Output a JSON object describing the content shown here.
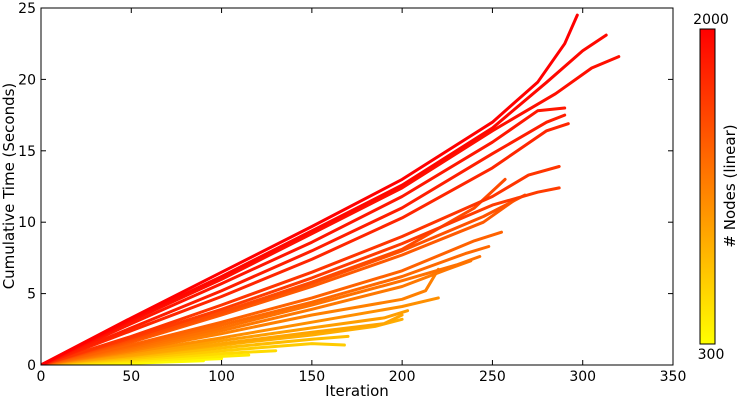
{
  "chart_data": {
    "type": "line",
    "title": "",
    "xlabel": "Iteration",
    "ylabel": "Cumulative Time (Seconds)",
    "xlim": [
      0,
      350
    ],
    "ylim": [
      0,
      25
    ],
    "xticks": [
      0,
      50,
      100,
      150,
      200,
      250,
      300,
      350
    ],
    "yticks": [
      0,
      5,
      10,
      15,
      20,
      25
    ],
    "grid": false,
    "colorbar": {
      "label": "# Nodes (linear)",
      "min": 300,
      "max": 2000,
      "min_label": "300",
      "max_label": "2000",
      "scale": "linear",
      "colors": [
        "#ffff00",
        "#ffaa00",
        "#ff5500",
        "#ff0000"
      ]
    },
    "series": [
      {
        "nodes": 2000,
        "x": [
          0,
          50,
          100,
          150,
          200,
          250,
          275,
          290,
          297
        ],
        "y": [
          0,
          3.3,
          6.5,
          9.7,
          13.0,
          17.0,
          19.8,
          22.5,
          24.5
        ]
      },
      {
        "nodes": 1950,
        "x": [
          0,
          50,
          100,
          150,
          200,
          250,
          280,
          300,
          313
        ],
        "y": [
          0,
          3.2,
          6.2,
          9.4,
          12.6,
          16.6,
          19.8,
          22.0,
          23.1
        ]
      },
      {
        "nodes": 1900,
        "x": [
          0,
          50,
          100,
          150,
          200,
          250,
          285,
          305,
          320
        ],
        "y": [
          0,
          3.1,
          6.0,
          9.2,
          12.4,
          16.4,
          19.0,
          20.8,
          21.6
        ]
      },
      {
        "nodes": 1850,
        "x": [
          0,
          50,
          100,
          150,
          200,
          250,
          275,
          290
        ],
        "y": [
          0,
          2.9,
          5.7,
          8.6,
          11.8,
          15.6,
          17.8,
          18.0
        ]
      },
      {
        "nodes": 1800,
        "x": [
          0,
          50,
          100,
          150,
          200,
          250,
          280,
          290
        ],
        "y": [
          0,
          2.6,
          5.2,
          8.0,
          11.0,
          14.8,
          17.0,
          17.5
        ]
      },
      {
        "nodes": 1750,
        "x": [
          0,
          50,
          100,
          150,
          200,
          250,
          280,
          292
        ],
        "y": [
          0,
          2.4,
          4.8,
          7.4,
          10.3,
          13.8,
          16.4,
          16.9
        ]
      },
      {
        "nodes": 1650,
        "x": [
          0,
          50,
          100,
          150,
          200,
          250,
          270,
          287
        ],
        "y": [
          0,
          2.0,
          4.2,
          6.5,
          9.0,
          11.8,
          13.3,
          13.9
        ]
      },
      {
        "nodes": 1600,
        "x": [
          0,
          50,
          100,
          150,
          200,
          250,
          275,
          287
        ],
        "y": [
          0,
          1.9,
          3.9,
          6.1,
          8.5,
          11.2,
          12.1,
          12.4
        ]
      },
      {
        "nodes": 1500,
        "x": [
          0,
          50,
          100,
          150,
          200,
          240,
          257
        ],
        "y": [
          0,
          1.8,
          3.7,
          5.8,
          8.1,
          11.0,
          13.0
        ]
      },
      {
        "nodes": 1450,
        "x": [
          0,
          50,
          100,
          150,
          200,
          245,
          268
        ],
        "y": [
          0,
          1.7,
          3.6,
          5.7,
          8.0,
          10.4,
          11.9
        ]
      },
      {
        "nodes": 1400,
        "x": [
          0,
          50,
          100,
          150,
          200,
          245,
          264
        ],
        "y": [
          0,
          1.6,
          3.5,
          5.5,
          7.7,
          10.0,
          11.7
        ]
      },
      {
        "nodes": 1350,
        "x": [
          0,
          50,
          100,
          150,
          200,
          240,
          255
        ],
        "y": [
          0,
          1.4,
          3.0,
          4.7,
          6.6,
          8.7,
          9.3
        ]
      },
      {
        "nodes": 1300,
        "x": [
          0,
          50,
          100,
          150,
          200,
          235,
          248
        ],
        "y": [
          0,
          1.3,
          2.8,
          4.4,
          6.2,
          7.8,
          8.3
        ]
      },
      {
        "nodes": 1250,
        "x": [
          0,
          50,
          100,
          150,
          200,
          230,
          243
        ],
        "y": [
          0,
          1.2,
          2.6,
          4.2,
          5.9,
          7.0,
          7.6
        ]
      },
      {
        "nodes": 1200,
        "x": [
          0,
          50,
          100,
          150,
          200,
          225,
          238
        ],
        "y": [
          0,
          1.1,
          2.4,
          3.9,
          5.5,
          6.7,
          7.3
        ]
      },
      {
        "nodes": 1150,
        "x": [
          0,
          50,
          100,
          150,
          200,
          213,
          220
        ],
        "y": [
          0,
          1.0,
          2.2,
          3.5,
          4.6,
          5.2,
          6.7
        ]
      },
      {
        "nodes": 1050,
        "x": [
          0,
          50,
          100,
          150,
          200,
          220
        ],
        "y": [
          0,
          0.9,
          1.9,
          3.0,
          4.1,
          4.7
        ]
      },
      {
        "nodes": 950,
        "x": [
          0,
          50,
          100,
          150,
          190,
          203
        ],
        "y": [
          0,
          0.8,
          1.7,
          2.6,
          3.3,
          3.8
        ]
      },
      {
        "nodes": 900,
        "x": [
          0,
          50,
          100,
          150,
          190,
          200
        ],
        "y": [
          0,
          0.7,
          1.5,
          2.3,
          2.9,
          3.5
        ]
      },
      {
        "nodes": 850,
        "x": [
          0,
          50,
          100,
          150,
          185,
          200
        ],
        "y": [
          0,
          0.65,
          1.4,
          2.1,
          2.7,
          3.2
        ]
      },
      {
        "nodes": 750,
        "x": [
          0,
          50,
          100,
          150,
          170
        ],
        "y": [
          0,
          0.55,
          1.2,
          1.8,
          2.0
        ]
      },
      {
        "nodes": 650,
        "x": [
          0,
          50,
          100,
          150,
          168
        ],
        "y": [
          0,
          0.45,
          1.0,
          1.5,
          1.4
        ]
      },
      {
        "nodes": 550,
        "x": [
          0,
          50,
          100,
          130
        ],
        "y": [
          0,
          0.35,
          0.8,
          1.0
        ]
      },
      {
        "nodes": 450,
        "x": [
          0,
          50,
          100,
          115
        ],
        "y": [
          0,
          0.25,
          0.6,
          0.7
        ]
      },
      {
        "nodes": 350,
        "x": [
          0,
          50,
          100
        ],
        "y": [
          0,
          0.18,
          0.45
        ]
      },
      {
        "nodes": 300,
        "x": [
          0,
          50,
          90
        ],
        "y": [
          0,
          0.12,
          0.3
        ]
      }
    ]
  }
}
